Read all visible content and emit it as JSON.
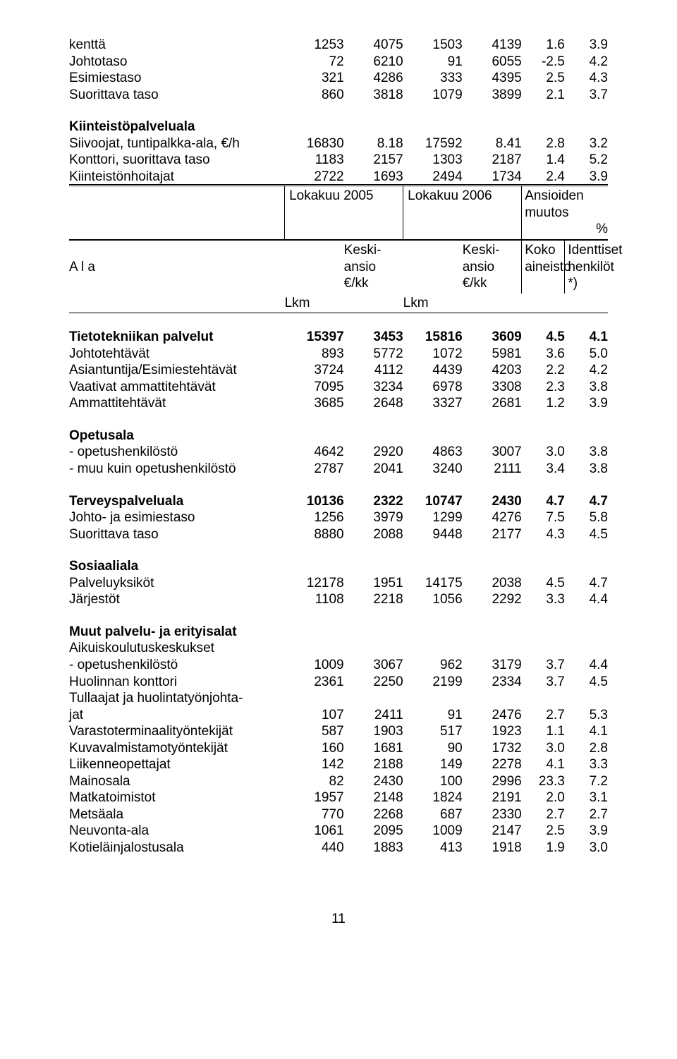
{
  "col_widths": [
    "40%",
    "11%",
    "11%",
    "11%",
    "11%",
    "8%",
    "8%"
  ],
  "top_rows": [
    {
      "label": "kenttä",
      "v": [
        "1253",
        "4075",
        "1503",
        "4139",
        "1.6",
        "3.9"
      ]
    },
    {
      "label": "Johtotaso",
      "v": [
        "72",
        "6210",
        "91",
        "6055",
        "-2.5",
        "4.2"
      ]
    },
    {
      "label": "Esimiestaso",
      "v": [
        "321",
        "4286",
        "333",
        "4395",
        "2.5",
        "4.3"
      ]
    },
    {
      "label": "Suorittava taso",
      "v": [
        "860",
        "3818",
        "1079",
        "3899",
        "2.1",
        "3.7"
      ]
    }
  ],
  "kp_heading": "Kiinteistöpalveluala",
  "kp_rows": [
    {
      "label": "Siivoojat, tuntipalkka-ala, €/h",
      "v": [
        "16830",
        "8.18",
        "17592",
        "8.41",
        "2.8",
        "3.2"
      ]
    },
    {
      "label": "Konttori, suorittava taso",
      "v": [
        "1183",
        "2157",
        "1303",
        "2187",
        "1.4",
        "5.2"
      ]
    },
    {
      "label": "Kiinteistönhoitajat",
      "v": [
        "2722",
        "1693",
        "2494",
        "1734",
        "2.4",
        "3.9"
      ]
    }
  ],
  "hdr": {
    "c1": "Lokakuu 2005",
    "c2": "Lokakuu 2006",
    "c3a": "Ansioiden muutos",
    "c3b": "%",
    "ala": "A l a",
    "keski1": "Keski-",
    "keski2": "ansio",
    "keski3": "€/kk",
    "koko1": "Koko",
    "koko2": "aineisto",
    "id1": "Identtiset",
    "id2": "henkilöt",
    "id3": "*)",
    "lkm": "Lkm"
  },
  "sections": [
    {
      "heading": "Tietotekniikan palvelut",
      "bold_row": true,
      "hv": [
        "15397",
        "3453",
        "15816",
        "3609",
        "4.5",
        "4.1"
      ],
      "rows": [
        {
          "label": "Johtotehtävät",
          "v": [
            "893",
            "5772",
            "1072",
            "5981",
            "3.6",
            "5.0"
          ]
        },
        {
          "label": "Asiantuntija/Esimiestehtävät",
          "v": [
            "3724",
            "4112",
            "4439",
            "4203",
            "2.2",
            "4.2"
          ]
        },
        {
          "label": "Vaativat ammattitehtävät",
          "v": [
            "7095",
            "3234",
            "6978",
            "3308",
            "2.3",
            "3.8"
          ]
        },
        {
          "label": "Ammattitehtävät",
          "v": [
            "3685",
            "2648",
            "3327",
            "2681",
            "1.2",
            "3.9"
          ]
        }
      ]
    },
    {
      "heading": "Opetusala",
      "bold_row": false,
      "rows": [
        {
          "label": "- opetushenkilöstö",
          "v": [
            "4642",
            "2920",
            "4863",
            "3007",
            "3.0",
            "3.8"
          ]
        },
        {
          "label": "- muu kuin opetushenkilöstö",
          "v": [
            "2787",
            "2041",
            "3240",
            "2111",
            "3.4",
            "3.8"
          ]
        }
      ]
    },
    {
      "heading": "Terveyspalveluala",
      "bold_row": true,
      "hv": [
        "10136",
        "2322",
        "10747",
        "2430",
        "4.7",
        "4.7"
      ],
      "rows": [
        {
          "label": "Johto- ja esimiestaso",
          "v": [
            "1256",
            "3979",
            "1299",
            "4276",
            "7.5",
            "5.8"
          ]
        },
        {
          "label": "Suorittava taso",
          "v": [
            "8880",
            "2088",
            "9448",
            "2177",
            "4.3",
            "4.5"
          ]
        }
      ]
    },
    {
      "heading": "Sosiaaliala",
      "bold_row": false,
      "rows": [
        {
          "label": "Palveluyksiköt",
          "v": [
            "12178",
            "1951",
            "14175",
            "2038",
            "4.5",
            "4.7"
          ]
        },
        {
          "label": "Järjestöt",
          "v": [
            "1108",
            "2218",
            "1056",
            "2292",
            "3.3",
            "4.4"
          ]
        }
      ]
    },
    {
      "heading": "Muut palvelu- ja erityisalat",
      "bold_row": false,
      "rows": [
        {
          "label": "Aikuiskoulutuskeskukset",
          "v": [
            "",
            "",
            "",
            "",
            "",
            ""
          ]
        },
        {
          "label": "- opetushenkilöstö",
          "v": [
            "1009",
            "3067",
            "962",
            "3179",
            "3.7",
            "4.4"
          ]
        },
        {
          "label": "Huolinnan konttori",
          "v": [
            "2361",
            "2250",
            "2199",
            "2334",
            "3.7",
            "4.5"
          ]
        },
        {
          "label": "Tullaajat ja huolintatyönjohta-",
          "v": [
            "",
            "",
            "",
            "",
            "",
            ""
          ]
        },
        {
          "label": "jat",
          "v": [
            "107",
            "2411",
            "91",
            "2476",
            "2.7",
            "5.3"
          ]
        },
        {
          "label": "Varastoterminaalityöntekijät",
          "v": [
            "587",
            "1903",
            "517",
            "1923",
            "1.1",
            "4.1"
          ]
        },
        {
          "label": "Kuvavalmistamotyöntekijät",
          "v": [
            "160",
            "1681",
            "90",
            "1732",
            "3.0",
            "2.8"
          ]
        },
        {
          "label": "Liikenneopettajat",
          "v": [
            "142",
            "2188",
            "149",
            "2278",
            "4.1",
            "3.3"
          ]
        },
        {
          "label": "Mainosala",
          "v": [
            "82",
            "2430",
            "100",
            "2996",
            "23.3",
            "7.2"
          ]
        },
        {
          "label": "Matkatoimistot",
          "v": [
            "1957",
            "2148",
            "1824",
            "2191",
            "2.0",
            "3.1"
          ]
        },
        {
          "label": "Metsäala",
          "v": [
            "770",
            "2268",
            "687",
            "2330",
            "2.7",
            "2.7"
          ]
        },
        {
          "label": "Neuvonta-ala",
          "v": [
            "1061",
            "2095",
            "1009",
            "2147",
            "2.5",
            "3.9"
          ]
        },
        {
          "label": "Kotieläinjalostusala",
          "v": [
            "440",
            "1883",
            "413",
            "1918",
            "1.9",
            "3.0"
          ]
        }
      ]
    }
  ],
  "page_number": "11"
}
